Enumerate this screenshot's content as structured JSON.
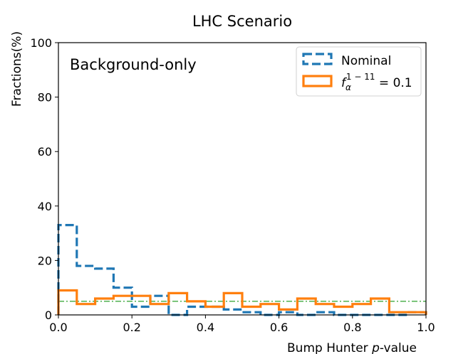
{
  "chart_data": {
    "type": "step-histogram",
    "title": "LHC Scenario",
    "xlabel_prefix": "Bump Hunter ",
    "xlabel_italic": "p",
    "xlabel_suffix": "-value",
    "ylabel": "Fractions(%)",
    "annotation": "Background-only",
    "xlim": [
      0.0,
      1.0
    ],
    "ylim": [
      0,
      100
    ],
    "xticks": [
      0.0,
      0.2,
      0.4,
      0.6,
      0.8,
      1.0
    ],
    "xtick_labels": [
      "0.0",
      "0.2",
      "0.4",
      "0.6",
      "0.8",
      "1.0"
    ],
    "yticks": [
      0,
      20,
      40,
      60,
      80,
      100
    ],
    "ytick_labels": [
      "0",
      "20",
      "40",
      "60",
      "80",
      "100"
    ],
    "bin_edges": [
      0.0,
      0.05,
      0.1,
      0.15,
      0.2,
      0.25,
      0.3,
      0.35,
      0.4,
      0.45,
      0.5,
      0.55,
      0.6,
      0.65,
      0.7,
      0.75,
      0.8,
      0.85,
      0.9,
      0.95,
      1.0
    ],
    "reference_line": {
      "y": 5,
      "color": "#2ca02c",
      "style": "dash-dot"
    },
    "legend_position": "upper right",
    "series": [
      {
        "name": "Nominal",
        "color": "#1f77b4",
        "style": "dashed",
        "values": [
          33,
          18,
          17,
          10,
          3,
          7,
          0,
          3,
          3,
          2,
          1,
          0,
          1,
          0,
          1,
          0,
          0,
          0,
          0,
          1
        ]
      },
      {
        "name": "f_alpha^{1-11} = 0.1",
        "legend_base": "f",
        "legend_sub": "α",
        "legend_sup": "1 − 11",
        "legend_tail": " = 0.1",
        "color": "#ff7f0e",
        "style": "solid",
        "values": [
          9,
          4,
          6,
          7,
          7,
          4,
          8,
          5,
          3,
          8,
          3,
          4,
          2,
          6,
          4,
          3,
          4,
          6,
          1,
          1
        ]
      }
    ]
  }
}
